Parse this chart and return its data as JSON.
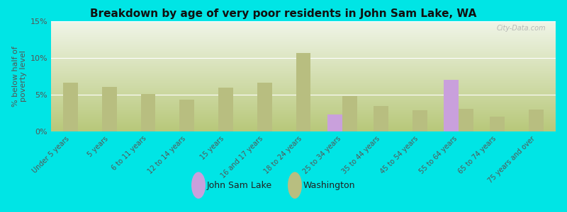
{
  "title": "Breakdown by age of very poor residents in John Sam Lake, WA",
  "ylabel": "% below half of\npoverty level",
  "background_color": "#00e5e5",
  "grad_bottom": "#b8c87a",
  "grad_top": "#f0f5e8",
  "categories": [
    "Under 5 years",
    "5 years",
    "6 to 11 years",
    "12 to 14 years",
    "15 years",
    "16 and 17 years",
    "18 to 24 years",
    "25 to 34 years",
    "35 to 44 years",
    "45 to 54 years",
    "55 to 64 years",
    "65 to 74 years",
    "75 years and over"
  ],
  "john_sam_lake": [
    0,
    0,
    0,
    0,
    0,
    0,
    0,
    2.3,
    0,
    0,
    7.0,
    0,
    0
  ],
  "washington": [
    6.6,
    6.1,
    5.1,
    4.3,
    6.0,
    6.6,
    10.7,
    4.8,
    3.5,
    2.9,
    3.1,
    2.0,
    3.0
  ],
  "john_sam_lake_color": "#c9a0dc",
  "washington_color": "#b8be80",
  "ylim": [
    0,
    15
  ],
  "yticks": [
    0,
    5,
    10,
    15
  ],
  "ytick_labels": [
    "0%",
    "5%",
    "10%",
    "15%"
  ],
  "watermark": "City-Data.com",
  "bar_width": 0.38
}
